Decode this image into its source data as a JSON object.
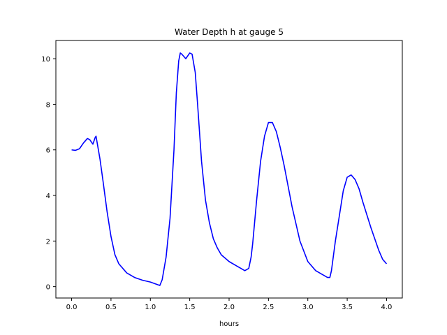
{
  "chart_data": {
    "type": "line",
    "title": "Water Depth h at gauge 5",
    "xlabel": "hours",
    "ylabel": "",
    "xlim": [
      -0.2,
      4.2
    ],
    "ylim": [
      -0.5,
      10.8
    ],
    "xticks": [
      0.0,
      0.5,
      1.0,
      1.5,
      2.0,
      2.5,
      3.0,
      3.5,
      4.0
    ],
    "xtick_labels": [
      "0.0",
      "0.5",
      "1.0",
      "1.5",
      "2.0",
      "2.5",
      "3.0",
      "3.5",
      "4.0"
    ],
    "yticks": [
      0,
      2,
      4,
      6,
      8,
      10
    ],
    "ytick_labels": [
      "0",
      "2",
      "4",
      "6",
      "8",
      "10"
    ],
    "grid": false,
    "series": [
      {
        "color": "#0000ff",
        "x": [
          0.0,
          0.05,
          0.1,
          0.15,
          0.2,
          0.23,
          0.27,
          0.3,
          0.31,
          0.33,
          0.36,
          0.4,
          0.45,
          0.5,
          0.55,
          0.6,
          0.7,
          0.8,
          0.9,
          1.0,
          1.08,
          1.12,
          1.15,
          1.2,
          1.25,
          1.3,
          1.33,
          1.36,
          1.38,
          1.4,
          1.45,
          1.5,
          1.53,
          1.57,
          1.6,
          1.65,
          1.7,
          1.75,
          1.8,
          1.85,
          1.9,
          2.0,
          2.1,
          2.2,
          2.25,
          2.28,
          2.3,
          2.35,
          2.4,
          2.45,
          2.5,
          2.55,
          2.6,
          2.65,
          2.7,
          2.8,
          2.9,
          3.0,
          3.1,
          3.2,
          3.25,
          3.28,
          3.3,
          3.35,
          3.4,
          3.45,
          3.5,
          3.55,
          3.6,
          3.65,
          3.7,
          3.8,
          3.9,
          3.95,
          4.0
        ],
        "y": [
          6.0,
          5.98,
          6.05,
          6.3,
          6.5,
          6.45,
          6.25,
          6.55,
          6.6,
          6.2,
          5.6,
          4.6,
          3.3,
          2.2,
          1.4,
          1.0,
          0.6,
          0.4,
          0.28,
          0.2,
          0.1,
          0.05,
          0.3,
          1.3,
          3.0,
          6.0,
          8.5,
          9.9,
          10.25,
          10.2,
          10.0,
          10.25,
          10.2,
          9.4,
          8.0,
          5.5,
          3.8,
          2.8,
          2.1,
          1.7,
          1.4,
          1.1,
          0.9,
          0.7,
          0.8,
          1.3,
          1.9,
          3.8,
          5.5,
          6.6,
          7.2,
          7.2,
          6.8,
          6.1,
          5.3,
          3.5,
          2.0,
          1.1,
          0.7,
          0.5,
          0.4,
          0.4,
          0.7,
          2.0,
          3.1,
          4.2,
          4.8,
          4.9,
          4.7,
          4.3,
          3.7,
          2.6,
          1.6,
          1.2,
          1.0
        ]
      }
    ]
  }
}
